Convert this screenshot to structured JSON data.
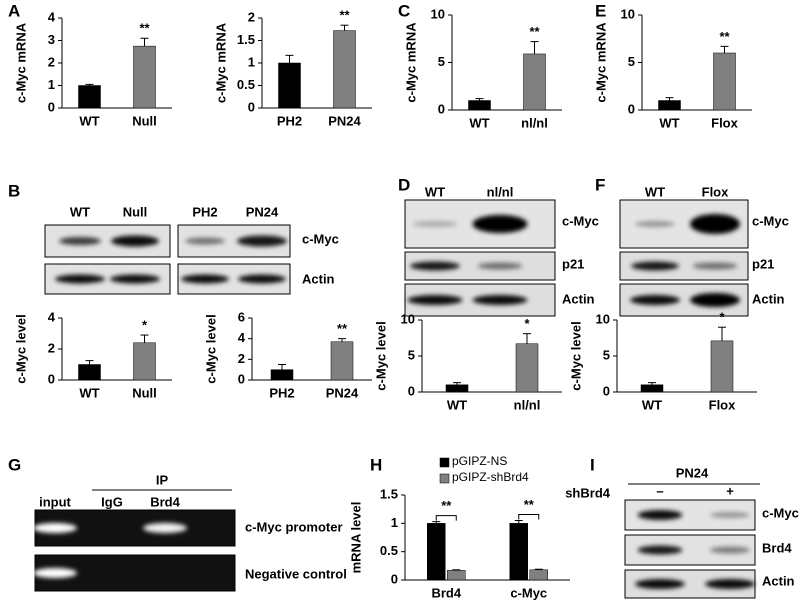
{
  "chart_data": [
    {
      "type": "bar",
      "ylabel": "c-Myc mRNA",
      "categories": [
        "WT",
        "Null"
      ],
      "values": [
        1.0,
        2.75
      ],
      "errors": [
        0.05,
        0.35
      ],
      "colors": [
        "#000000",
        "#808080"
      ],
      "ylim": [
        0,
        4
      ],
      "yticks": [
        0,
        1,
        2,
        3,
        4
      ],
      "annotations": [
        null,
        "**"
      ]
    },
    {
      "type": "bar",
      "ylabel": "c-Myc mRNA",
      "categories": [
        "PH2",
        "PN24"
      ],
      "values": [
        1.0,
        1.72
      ],
      "errors": [
        0.17,
        0.12
      ],
      "colors": [
        "#000000",
        "#808080"
      ],
      "ylim": [
        0,
        2
      ],
      "yticks": [
        0,
        0.5,
        1,
        1.5,
        2
      ],
      "annotations": [
        null,
        "**"
      ]
    },
    {
      "type": "bar",
      "ylabel": "c-Myc mRNA",
      "categories": [
        "WT",
        "nl/nl"
      ],
      "values": [
        1.0,
        5.9
      ],
      "errors": [
        0.2,
        1.3
      ],
      "colors": [
        "#000000",
        "#808080"
      ],
      "ylim": [
        0,
        10
      ],
      "yticks": [
        0,
        5,
        10
      ],
      "annotations": [
        null,
        "**"
      ]
    },
    {
      "type": "bar",
      "ylabel": "c-Myc mRNA",
      "categories": [
        "WT",
        "Flox"
      ],
      "values": [
        1.0,
        6.0
      ],
      "errors": [
        0.3,
        0.7
      ],
      "colors": [
        "#000000",
        "#808080"
      ],
      "ylim": [
        0,
        10
      ],
      "yticks": [
        0,
        5,
        10
      ],
      "annotations": [
        null,
        "**"
      ]
    },
    {
      "type": "bar",
      "ylabel": "c-Myc level",
      "categories": [
        "WT",
        "Null"
      ],
      "values": [
        1.0,
        2.4
      ],
      "errors": [
        0.25,
        0.5
      ],
      "colors": [
        "#000000",
        "#808080"
      ],
      "ylim": [
        0,
        4
      ],
      "yticks": [
        0,
        2,
        4
      ],
      "annotations": [
        null,
        "*"
      ]
    },
    {
      "type": "bar",
      "ylabel": "c-Myc level",
      "categories": [
        "PH2",
        "PN24"
      ],
      "values": [
        1.0,
        3.7
      ],
      "errors": [
        0.5,
        0.3
      ],
      "colors": [
        "#000000",
        "#808080"
      ],
      "ylim": [
        0,
        6
      ],
      "yticks": [
        0,
        2,
        4,
        6
      ],
      "annotations": [
        null,
        "**"
      ]
    },
    {
      "type": "bar",
      "ylabel": "c-Myc level",
      "categories": [
        "WT",
        "nl/nl"
      ],
      "values": [
        1.0,
        6.7
      ],
      "errors": [
        0.3,
        1.4
      ],
      "colors": [
        "#000000",
        "#808080"
      ],
      "ylim": [
        0,
        10
      ],
      "yticks": [
        0,
        5,
        10
      ],
      "annotations": [
        null,
        "*"
      ]
    },
    {
      "type": "bar",
      "ylabel": "c-Myc level",
      "categories": [
        "WT",
        "Flox"
      ],
      "values": [
        1.0,
        7.1
      ],
      "errors": [
        0.3,
        1.9
      ],
      "colors": [
        "#000000",
        "#808080"
      ],
      "ylim": [
        0,
        10
      ],
      "yticks": [
        0,
        5,
        10
      ],
      "annotations": [
        null,
        "*"
      ]
    },
    {
      "type": "grouped-bar",
      "ylabel": "mRNA level",
      "categories": [
        "Brd4",
        "c-Myc"
      ],
      "series": [
        {
          "name": "pGIPZ-NS",
          "color": "#000000",
          "values": [
            1.0,
            1.0
          ],
          "errors": [
            0.03,
            0.05
          ]
        },
        {
          "name": "pGIPZ-shBrd4",
          "color": "#808080",
          "values": [
            0.17,
            0.18
          ],
          "errors": [
            0.01,
            0.01
          ]
        }
      ],
      "ylim": [
        0,
        1.5
      ],
      "yticks": [
        0,
        0.5,
        1,
        1.5
      ],
      "annotations": [
        "**",
        "**"
      ],
      "legend": "top-left"
    }
  ],
  "figure": {
    "panels": [
      "A",
      "B",
      "C",
      "D",
      "E",
      "F",
      "G",
      "H",
      "I"
    ],
    "blot_b": {
      "lanes": [
        "WT",
        "Null",
        "PH2",
        "PN24"
      ],
      "rows": [
        "c-Myc",
        "Actin"
      ]
    },
    "blot_d": {
      "lanes": [
        "WT",
        "nl/nl"
      ],
      "rows": [
        "c-Myc",
        "p21",
        "Actin"
      ]
    },
    "blot_f": {
      "lanes": [
        "WT",
        "Flox"
      ],
      "rows": [
        "c-Myc",
        "p21",
        "Actin"
      ]
    },
    "gel_g": {
      "group": "IP",
      "lanes": [
        "input",
        "IgG",
        "Brd4"
      ],
      "rows": [
        "c-Myc promoter",
        "Negative control"
      ]
    },
    "blot_i": {
      "group": "PN24",
      "treatment": "shBrd4",
      "lanes": [
        "–",
        "+"
      ],
      "rows": [
        "c-Myc",
        "Brd4",
        "Actin"
      ]
    }
  }
}
